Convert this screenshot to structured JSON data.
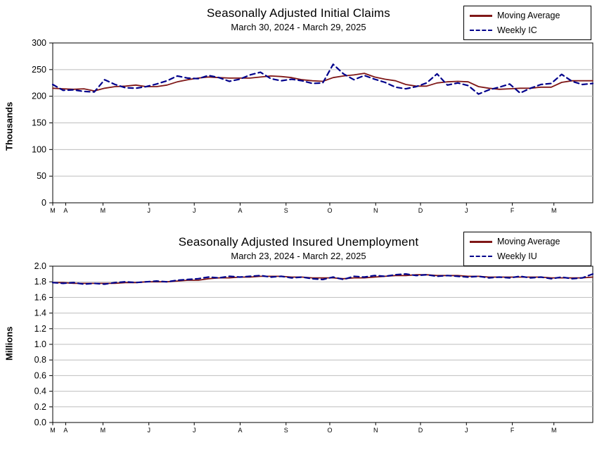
{
  "page_background": "#ffffff",
  "colors": {
    "moving_average": "#7F1717",
    "weekly": "#00008B",
    "grid": "#BEBEBE",
    "axis": "#000000",
    "plot_background": "#ffffff"
  },
  "chart_data": [
    {
      "type": "line",
      "title": "Seasonally Adjusted Initial Claims",
      "subtitle": "March 30, 2024 - March 29, 2025",
      "ylabel": "Thousands",
      "units": "thousands",
      "ylim": [
        0,
        300
      ],
      "grid": true,
      "legend_position": "top-right",
      "ytick_values": [
        0,
        50,
        100,
        150,
        200,
        250,
        300
      ],
      "ytick_labels": [
        "0",
        "50",
        "100",
        "150",
        "200",
        "250",
        "300"
      ],
      "xticks": [
        {
          "label": "M",
          "f": 0.0
        },
        {
          "label": "A",
          "f": 0.024
        },
        {
          "label": "M",
          "f": 0.093
        },
        {
          "label": "J",
          "f": 0.178
        },
        {
          "label": "J",
          "f": 0.262
        },
        {
          "label": "A",
          "f": 0.347
        },
        {
          "label": "S",
          "f": 0.432
        },
        {
          "label": "O",
          "f": 0.513
        },
        {
          "label": "N",
          "f": 0.598
        },
        {
          "label": "D",
          "f": 0.681
        },
        {
          "label": "J",
          "f": 0.766
        },
        {
          "label": "F",
          "f": 0.851
        },
        {
          "label": "M",
          "f": 0.928
        }
      ],
      "legend": [
        {
          "name": "Moving Average",
          "style": "solid",
          "color": "#7F1717"
        },
        {
          "name": "Weekly IC",
          "style": "dashed",
          "color": "#00008B"
        }
      ],
      "series": [
        {
          "name": "Moving Average",
          "style": "solid",
          "color": "#7F1717",
          "values": [
            215,
            214,
            213,
            214,
            210,
            215,
            218,
            219,
            221,
            218,
            218,
            221,
            227,
            231,
            234,
            236,
            235,
            234,
            234,
            234,
            236,
            238,
            237,
            235,
            231,
            229,
            228,
            235,
            238,
            240,
            243,
            236,
            232,
            229,
            222,
            219,
            219,
            225,
            227,
            228,
            227,
            218,
            215,
            213,
            214,
            215,
            215,
            217,
            217,
            226,
            229,
            229,
            229
          ]
        },
        {
          "name": "Weekly IC",
          "style": "dashed",
          "color": "#00008B",
          "values": [
            222,
            211,
            212,
            209,
            208,
            231,
            222,
            216,
            215,
            218,
            223,
            229,
            238,
            234,
            233,
            239,
            235,
            228,
            232,
            240,
            245,
            233,
            229,
            232,
            229,
            224,
            225,
            260,
            242,
            231,
            239,
            232,
            226,
            217,
            214,
            218,
            225,
            242,
            221,
            225,
            220,
            204,
            212,
            217,
            223,
            206,
            215,
            222,
            224,
            241,
            228,
            222,
            224
          ]
        }
      ]
    },
    {
      "type": "line",
      "title": "Seasonally Adjusted Insured Unemployment",
      "subtitle": "March 23, 2024 - March 22, 2025",
      "ylabel": "Millions",
      "units": "millions",
      "ylim": [
        0,
        2.0
      ],
      "grid": true,
      "legend_position": "top-right",
      "ytick_values": [
        0,
        0.2,
        0.4,
        0.6,
        0.8,
        1.0,
        1.2,
        1.4,
        1.6,
        1.8,
        2.0
      ],
      "ytick_labels": [
        "0.0",
        "0.2",
        "0.4",
        "0.6",
        "0.8",
        "1.0",
        "1.2",
        "1.4",
        "1.6",
        "1.8",
        "2.0"
      ],
      "xticks": [
        {
          "label": "M",
          "f": 0.0
        },
        {
          "label": "A",
          "f": 0.024
        },
        {
          "label": "M",
          "f": 0.093
        },
        {
          "label": "J",
          "f": 0.178
        },
        {
          "label": "J",
          "f": 0.262
        },
        {
          "label": "A",
          "f": 0.347
        },
        {
          "label": "S",
          "f": 0.432
        },
        {
          "label": "O",
          "f": 0.513
        },
        {
          "label": "N",
          "f": 0.598
        },
        {
          "label": "D",
          "f": 0.681
        },
        {
          "label": "J",
          "f": 0.766
        },
        {
          "label": "F",
          "f": 0.851
        },
        {
          "label": "M",
          "f": 0.928
        }
      ],
      "legend": [
        {
          "name": "Moving Average",
          "style": "solid",
          "color": "#7F1717"
        },
        {
          "name": "Weekly IU",
          "style": "dashed",
          "color": "#00008B"
        }
      ],
      "series": [
        {
          "name": "Moving Average",
          "style": "solid",
          "color": "#7F1717",
          "values": [
            1.79,
            1.79,
            1.78,
            1.78,
            1.78,
            1.78,
            1.78,
            1.79,
            1.79,
            1.8,
            1.8,
            1.8,
            1.81,
            1.82,
            1.82,
            1.84,
            1.85,
            1.85,
            1.86,
            1.86,
            1.87,
            1.87,
            1.87,
            1.86,
            1.86,
            1.85,
            1.85,
            1.85,
            1.84,
            1.85,
            1.85,
            1.86,
            1.87,
            1.88,
            1.88,
            1.89,
            1.89,
            1.88,
            1.88,
            1.88,
            1.87,
            1.87,
            1.86,
            1.86,
            1.86,
            1.86,
            1.86,
            1.86,
            1.85,
            1.85,
            1.85,
            1.85,
            1.86
          ]
        },
        {
          "name": "Weekly IU",
          "style": "dashed",
          "color": "#00008B",
          "values": [
            1.79,
            1.78,
            1.79,
            1.77,
            1.78,
            1.77,
            1.79,
            1.8,
            1.79,
            1.8,
            1.81,
            1.8,
            1.82,
            1.83,
            1.84,
            1.86,
            1.85,
            1.87,
            1.86,
            1.87,
            1.88,
            1.86,
            1.87,
            1.85,
            1.86,
            1.84,
            1.83,
            1.86,
            1.83,
            1.87,
            1.86,
            1.88,
            1.87,
            1.89,
            1.9,
            1.88,
            1.89,
            1.87,
            1.88,
            1.87,
            1.86,
            1.87,
            1.85,
            1.86,
            1.85,
            1.87,
            1.85,
            1.86,
            1.84,
            1.86,
            1.84,
            1.85,
            1.9
          ]
        }
      ]
    }
  ]
}
